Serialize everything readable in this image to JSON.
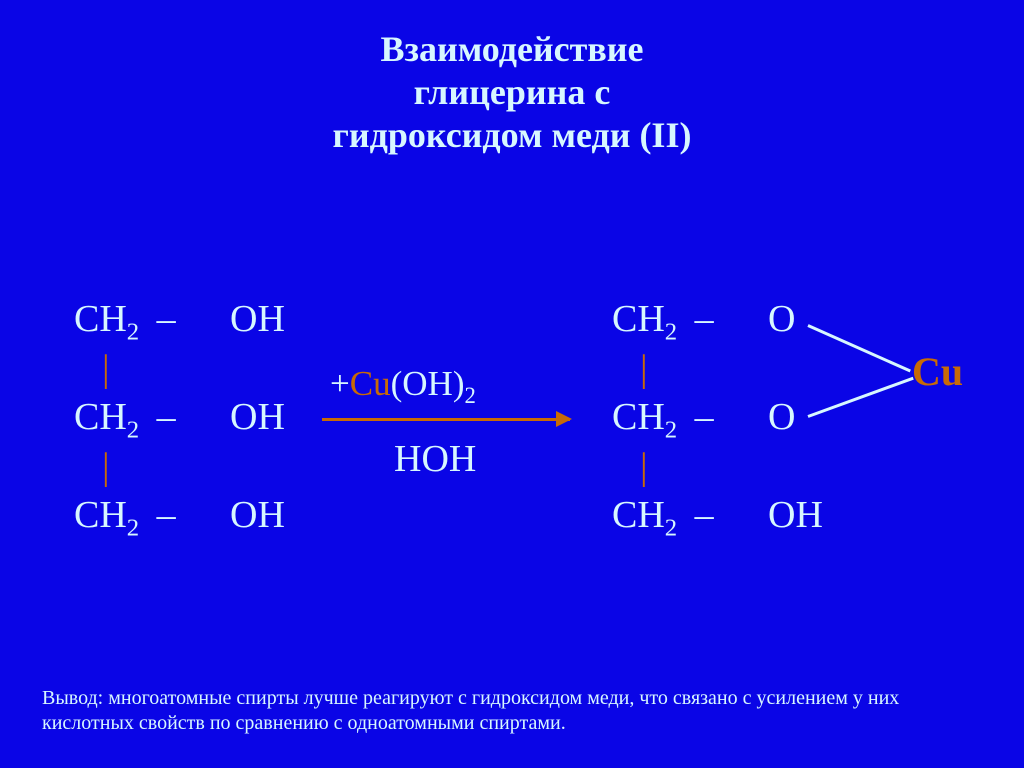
{
  "colors": {
    "background": "#0a05e6",
    "title": "#d7f7ff",
    "formula": "#d7f7ff",
    "accent": "#c86a06",
    "footnote": "#d7f7ff"
  },
  "fonts": {
    "title_size": 36,
    "formula_size": 38,
    "reagent_size": 35,
    "footnote_size": 20,
    "cu_size": 40
  },
  "title": {
    "line1": "Взаимодействие",
    "line2": "глицерина с",
    "line3": "гидроксидом меди (II)"
  },
  "reactant": {
    "row1_left": "СН",
    "row1_oh": "ОН",
    "row2_left": "СН",
    "row2_oh": "ОН",
    "row3_left": "СН",
    "row3_oh": "ОН",
    "sub": "2",
    "dash": "–",
    "bond": "|"
  },
  "product": {
    "row1_left": "СН",
    "row1_o": "О",
    "row2_left": "СН",
    "row2_o": "О",
    "row3_left": "СН",
    "row3_oh": "ОН",
    "sub": "2",
    "dash": "–",
    "bond": "|"
  },
  "arrow": {
    "plus": "+",
    "cu": "Cu",
    "oh": "(OH)",
    "sub": "2",
    "below": "HOH"
  },
  "cu_label": "Cu",
  "footnote": "Вывод: многоатомные спирты лучше реагируют с гидроксидом меди, что связано с усилением у них кислотных свойств по сравнению с одноатомными спиртами."
}
